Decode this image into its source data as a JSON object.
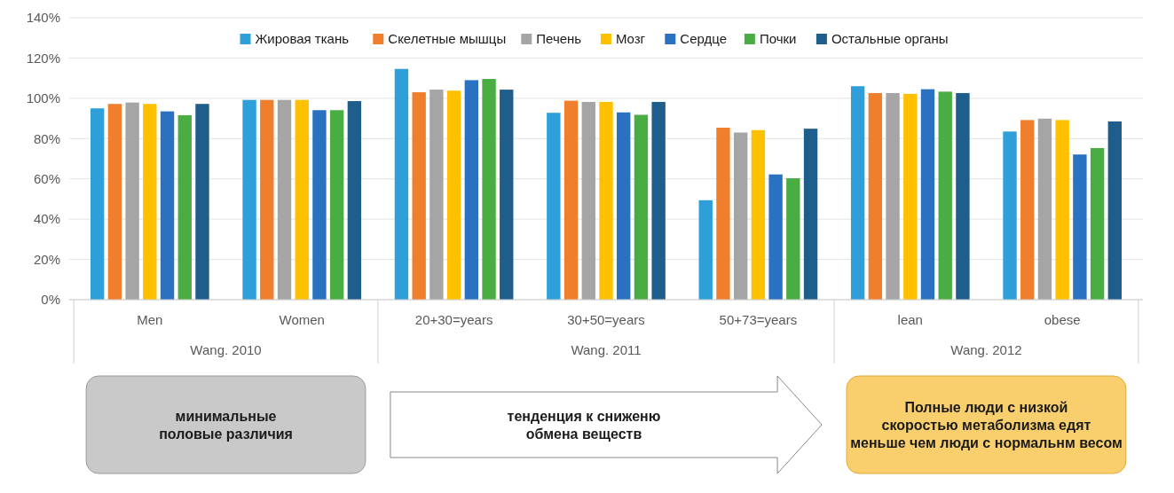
{
  "chart_data": {
    "type": "bar",
    "categories": [
      "Men",
      "Women",
      "20+30=years",
      "30+50=years",
      "50+73=years",
      "lean",
      "obese"
    ],
    "series": [
      {
        "name": "Жировая ткань",
        "color": "#2e9fd9",
        "values": [
          95,
          99.2,
          114.6,
          92.8,
          49.4,
          106,
          83.5
        ]
      },
      {
        "name": "Скелетные мышцы",
        "color": "#f07f2d",
        "values": [
          97.2,
          99.2,
          103,
          98.8,
          85.4,
          102.6,
          89.2
        ]
      },
      {
        "name": "Печень",
        "color": "#a5a5a5",
        "values": [
          97.9,
          99.2,
          104.3,
          98.2,
          83,
          102.6,
          89.9
        ]
      },
      {
        "name": "Мозг",
        "color": "#ffc000",
        "values": [
          97.2,
          99.2,
          103.8,
          98.2,
          84.2,
          102.2,
          89.2
        ]
      },
      {
        "name": "Сердце",
        "color": "#2a71c2",
        "values": [
          93.5,
          94.1,
          109,
          93,
          62.2,
          104.5,
          72.1
        ]
      },
      {
        "name": "Почки",
        "color": "#4aad44",
        "values": [
          91.6,
          94.1,
          109.6,
          91.8,
          60.3,
          103.3,
          75.3
        ]
      },
      {
        "name": "Остальные органы",
        "color": "#1f5d8c",
        "values": [
          97.2,
          98.6,
          104.3,
          98.2,
          84.9,
          102.6,
          88.5
        ]
      }
    ],
    "ylim": [
      0,
      140
    ],
    "yticks": [
      {
        "value": 0,
        "label": "0%"
      },
      {
        "value": 20,
        "label": "20%"
      },
      {
        "value": 40,
        "label": "40%"
      },
      {
        "value": 60,
        "label": "60%"
      },
      {
        "value": 80,
        "label": "80%"
      },
      {
        "value": 100,
        "label": "100%"
      },
      {
        "value": 120,
        "label": "120%"
      },
      {
        "value": 140,
        "label": "140%"
      }
    ],
    "grid": "y",
    "legend": "top",
    "annotations": [
      "Wang. 2010",
      "Wang. 2011",
      "Wang. 2012",
      "минимальные\nполовые различия",
      "тенденция к сниженю\nобмена веществ",
      "Полные люди с низкой\nскоростью метаболизма едят\nменьше чем люди с нормальнм весом"
    ]
  }
}
